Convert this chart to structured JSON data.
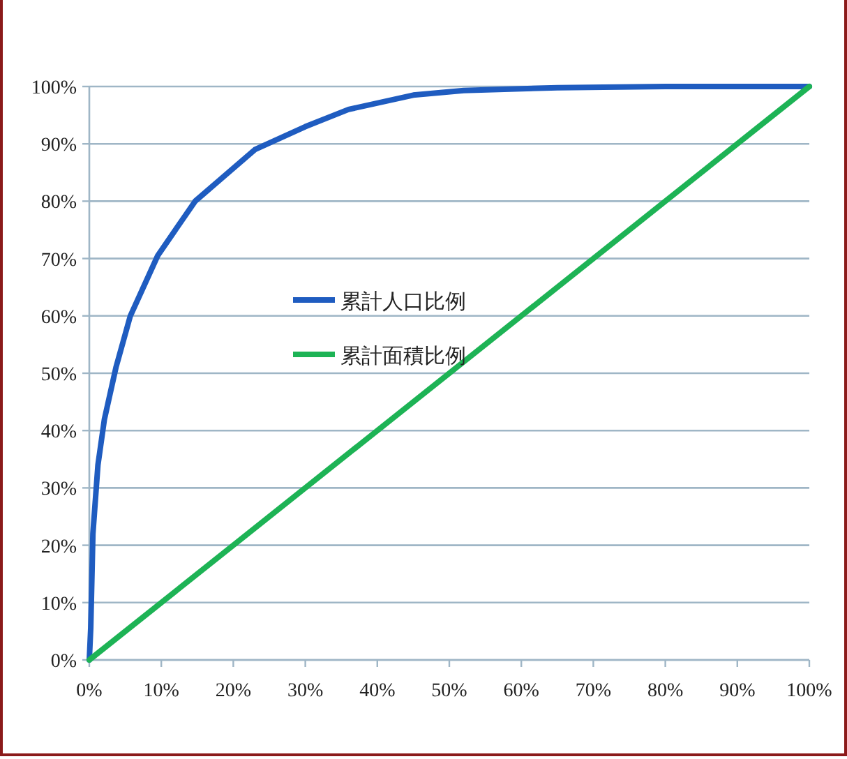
{
  "chart_data": {
    "type": "line",
    "x": [
      0,
      0.2,
      0.5,
      1.2,
      2.1,
      3.7,
      5.7,
      9.5,
      14.7,
      23,
      30,
      36,
      45,
      52,
      65,
      80,
      100
    ],
    "series": [
      {
        "name": "累計人口比例",
        "color": "#1f5cc0",
        "values": [
          0,
          5.6,
          22,
          34,
          42,
          51,
          60,
          70.5,
          80,
          89,
          93,
          96,
          98.5,
          99.3,
          99.8,
          100,
          100
        ]
      },
      {
        "name": "累計面積比例",
        "color": "#1db355",
        "x": [
          0,
          100
        ],
        "values": [
          0,
          100
        ]
      }
    ],
    "xlim": [
      0,
      100
    ],
    "ylim": [
      0,
      100
    ],
    "xticks": [
      {
        "value": 0,
        "label": "0%"
      },
      {
        "value": 10,
        "label": "10%"
      },
      {
        "value": 20,
        "label": "20%"
      },
      {
        "value": 30,
        "label": "30%"
      },
      {
        "value": 40,
        "label": "40%"
      },
      {
        "value": 50,
        "label": "50%"
      },
      {
        "value": 60,
        "label": "60%"
      },
      {
        "value": 70,
        "label": "70%"
      },
      {
        "value": 80,
        "label": "80%"
      },
      {
        "value": 90,
        "label": "90%"
      },
      {
        "value": 100,
        "label": "100%"
      }
    ],
    "yticks": [
      {
        "value": 0,
        "label": "0%"
      },
      {
        "value": 10,
        "label": "10%"
      },
      {
        "value": 20,
        "label": "20%"
      },
      {
        "value": 30,
        "label": "30%"
      },
      {
        "value": 40,
        "label": "40%"
      },
      {
        "value": 50,
        "label": "50%"
      },
      {
        "value": 60,
        "label": "60%"
      },
      {
        "value": 70,
        "label": "70%"
      },
      {
        "value": 80,
        "label": "80%"
      },
      {
        "value": 90,
        "label": "90%"
      },
      {
        "value": 100,
        "label": "100%"
      }
    ],
    "grid": "y",
    "legend": "center",
    "marker": "none",
    "line_style": "solid"
  }
}
